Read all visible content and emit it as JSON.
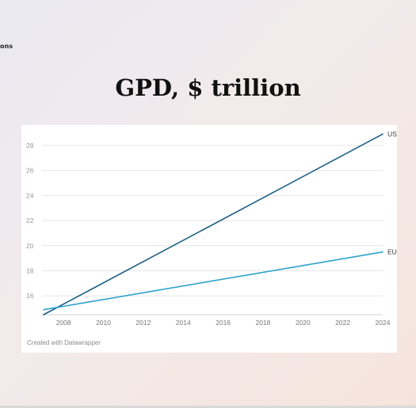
{
  "page": {
    "corner_text": "ons",
    "title": "GPD, $ trillion"
  },
  "colors": {
    "us_line": "#1d5f84",
    "eu_line": "#2ea2cb",
    "grid": "#e6e6e6",
    "tick_text": "#999999"
  },
  "chart_data": {
    "type": "line",
    "title": "GPD, $ trillion",
    "xlabel": "",
    "ylabel": "",
    "x": [
      2007,
      2024
    ],
    "xlim": [
      2007,
      2024
    ],
    "ylim": [
      14.5,
      29
    ],
    "x_ticks": [
      2008,
      2010,
      2012,
      2014,
      2016,
      2018,
      2020,
      2022,
      2024
    ],
    "y_ticks": [
      16,
      18,
      20,
      22,
      24,
      26,
      28
    ],
    "grid": true,
    "series": [
      {
        "name": "US",
        "x": [
          2007,
          2024
        ],
        "values": [
          14.5,
          28.9
        ]
      },
      {
        "name": "EU",
        "x": [
          2007,
          2024
        ],
        "values": [
          14.9,
          19.5
        ]
      }
    ],
    "credit": "Created with Datawrapper"
  }
}
